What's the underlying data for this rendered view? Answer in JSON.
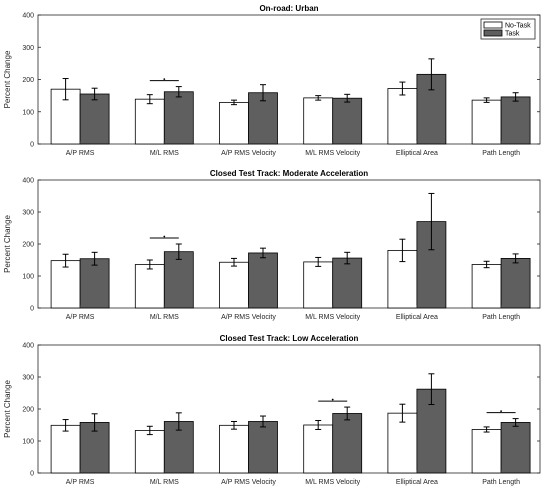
{
  "colors": {
    "no_task": "#ffffff",
    "task": "#5f5f5f",
    "axis": "#262626",
    "bar_edge": "#000000"
  },
  "legend": {
    "placement": "top-right",
    "entries": [
      "No-Task",
      "Task"
    ]
  },
  "chart_data": [
    {
      "type": "bar",
      "title": "On-road: Urban",
      "ylabel": "Percent Change",
      "ylim": [
        0,
        400
      ],
      "yticks": [
        "0",
        "100",
        "200",
        "300",
        "400"
      ],
      "categories": [
        "A/P RMS",
        "M/L RMS",
        "A/P RMS Velocity",
        "M/L RMS Velocity",
        "Elliptical Area",
        "Path Length"
      ],
      "series": [
        {
          "name": "No-Task",
          "values": [
            170,
            139,
            129,
            143,
            172,
            136
          ],
          "errors": [
            33,
            14,
            7,
            7,
            20,
            7
          ]
        },
        {
          "name": "Task",
          "values": [
            155,
            162,
            159,
            142,
            216,
            146
          ],
          "errors": [
            18,
            16,
            25,
            12,
            48,
            13
          ]
        }
      ],
      "significance": [
        1
      ],
      "legend_shown": true
    },
    {
      "type": "bar",
      "title": "Closed Test Track: Moderate Acceleration",
      "ylabel": "Percent Change",
      "ylim": [
        0,
        400
      ],
      "yticks": [
        "0",
        "100",
        "200",
        "300",
        "400"
      ],
      "categories": [
        "A/P RMS",
        "M/L RMS",
        "A/P RMS Velocity",
        "M/L RMS Velocity",
        "Elliptical Area",
        "Path Length"
      ],
      "series": [
        {
          "name": "No-Task",
          "values": [
            148,
            136,
            143,
            144,
            180,
            136
          ],
          "errors": [
            20,
            14,
            12,
            14,
            35,
            10
          ]
        },
        {
          "name": "Task",
          "values": [
            154,
            176,
            172,
            156,
            270,
            155
          ],
          "errors": [
            20,
            24,
            15,
            18,
            88,
            14
          ]
        }
      ],
      "significance": [
        1
      ],
      "legend_shown": false
    },
    {
      "type": "bar",
      "title": "Closed Test Track: Low Acceleration",
      "ylabel": "Percent Change",
      "ylim": [
        0,
        400
      ],
      "yticks": [
        "0",
        "100",
        "200",
        "300",
        "400"
      ],
      "categories": [
        "A/P RMS",
        "M/L RMS",
        "A/P RMS Velocity",
        "M/L RMS Velocity",
        "Elliptical Area",
        "Path Length"
      ],
      "series": [
        {
          "name": "No-Task",
          "values": [
            149,
            133,
            149,
            150,
            187,
            136
          ],
          "errors": [
            18,
            13,
            12,
            14,
            28,
            8
          ]
        },
        {
          "name": "Task",
          "values": [
            158,
            161,
            161,
            186,
            262,
            158
          ],
          "errors": [
            27,
            27,
            17,
            20,
            48,
            12
          ]
        }
      ],
      "significance": [
        3,
        5
      ],
      "legend_shown": false
    }
  ]
}
